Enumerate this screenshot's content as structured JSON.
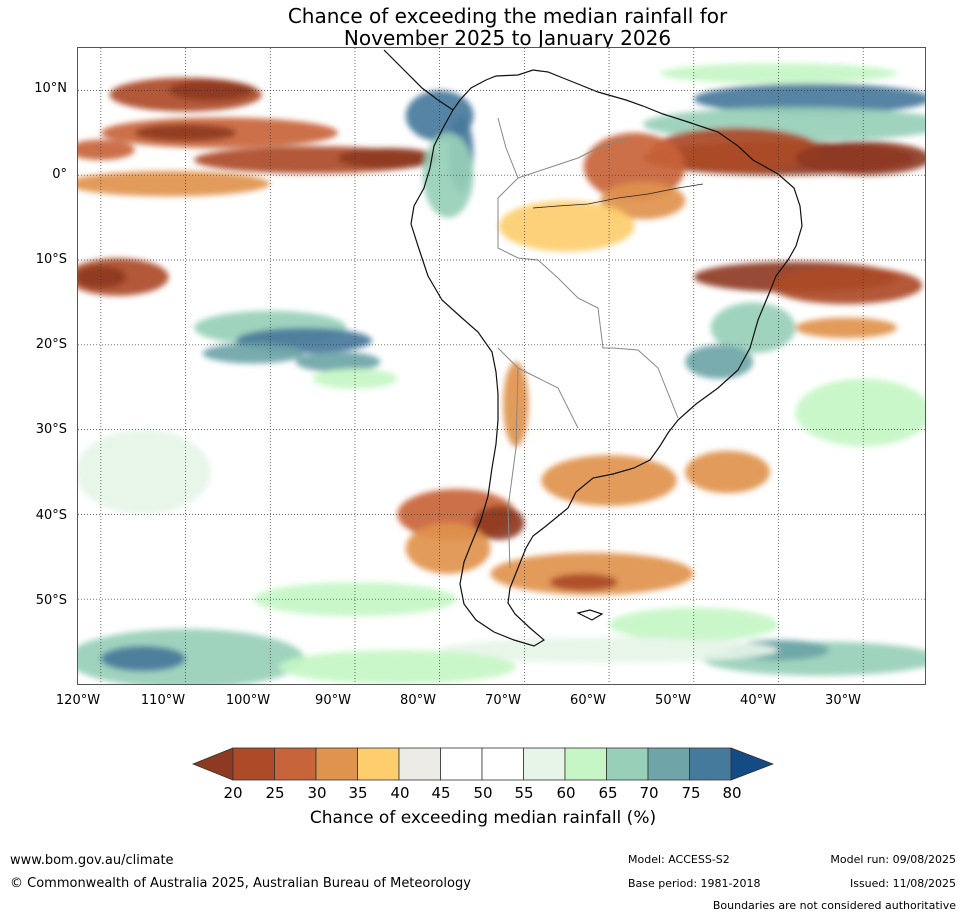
{
  "title": {
    "line1": "Chance of exceeding the median rainfall for",
    "line2": "November 2025 to January 2026"
  },
  "map": {
    "lat_labels": [
      "10°N",
      "0°",
      "10°S",
      "20°S",
      "30°S",
      "40°S",
      "50°S"
    ],
    "lon_labels": [
      "120°W",
      "110°W",
      "100°W",
      "90°W",
      "80°W",
      "70°W",
      "60°W",
      "50°W",
      "40°W",
      "30°W"
    ],
    "extent": {
      "lon_min": -122.7,
      "lon_max": -22.7,
      "lat_min": -60,
      "lat_max": 15
    },
    "grid": "dotted",
    "region": "South America and surrounding oceans",
    "regions": [
      {
        "area": "Eastern equatorial Pacific near 0°-5°N",
        "chance_pct": "<25",
        "class": 0
      },
      {
        "area": "Western equatorial Atlantic near 0°-5°N",
        "chance_pct": "<25",
        "class": 0
      },
      {
        "area": "Equatorial Atlantic near 10°N",
        "chance_pct": ">80",
        "class": 12
      },
      {
        "area": "Colombia Pacific coast",
        "chance_pct": "75-80",
        "class": 11
      },
      {
        "area": "Southeast Pacific near 20°S 95°W",
        "chance_pct": "75-80",
        "class": 11
      },
      {
        "area": "Southern Chile 38°-45°S",
        "chance_pct": "25-30",
        "class": 2
      },
      {
        "area": "Northern Brazil",
        "chance_pct": "30-40",
        "class": 3
      },
      {
        "area": "Atlantic near 15°S",
        "chance_pct": "<25",
        "class": 0
      }
    ]
  },
  "colorbar": {
    "ticks": [
      "20",
      "25",
      "30",
      "35",
      "40",
      "45",
      "50",
      "55",
      "60",
      "65",
      "70",
      "75",
      "80"
    ],
    "colors": [
      "#8e3a22",
      "#ad4a28",
      "#c8643a",
      "#e0934c",
      "#fdcd6e",
      "#ecebe6",
      "#ffffff",
      "#ffffff",
      "#e6f5e8",
      "#c6f6c6",
      "#97cfb8",
      "#6da5a8",
      "#467a9c",
      "#144b84"
    ],
    "label": "Chance of exceeding median rainfall (%)"
  },
  "footer": {
    "url": "www.bom.gov.au/climate",
    "copyright": "© Commonwealth of Australia 2025, Australian Bureau of Meteorology",
    "model": "Model: ACCESS-S2",
    "base_period": "Base period: 1981-2018",
    "model_run": "Model run: 09/08/2025",
    "issued": "Issued: 11/08/2025",
    "disclaimer": "Boundaries are not considered authoritative"
  }
}
